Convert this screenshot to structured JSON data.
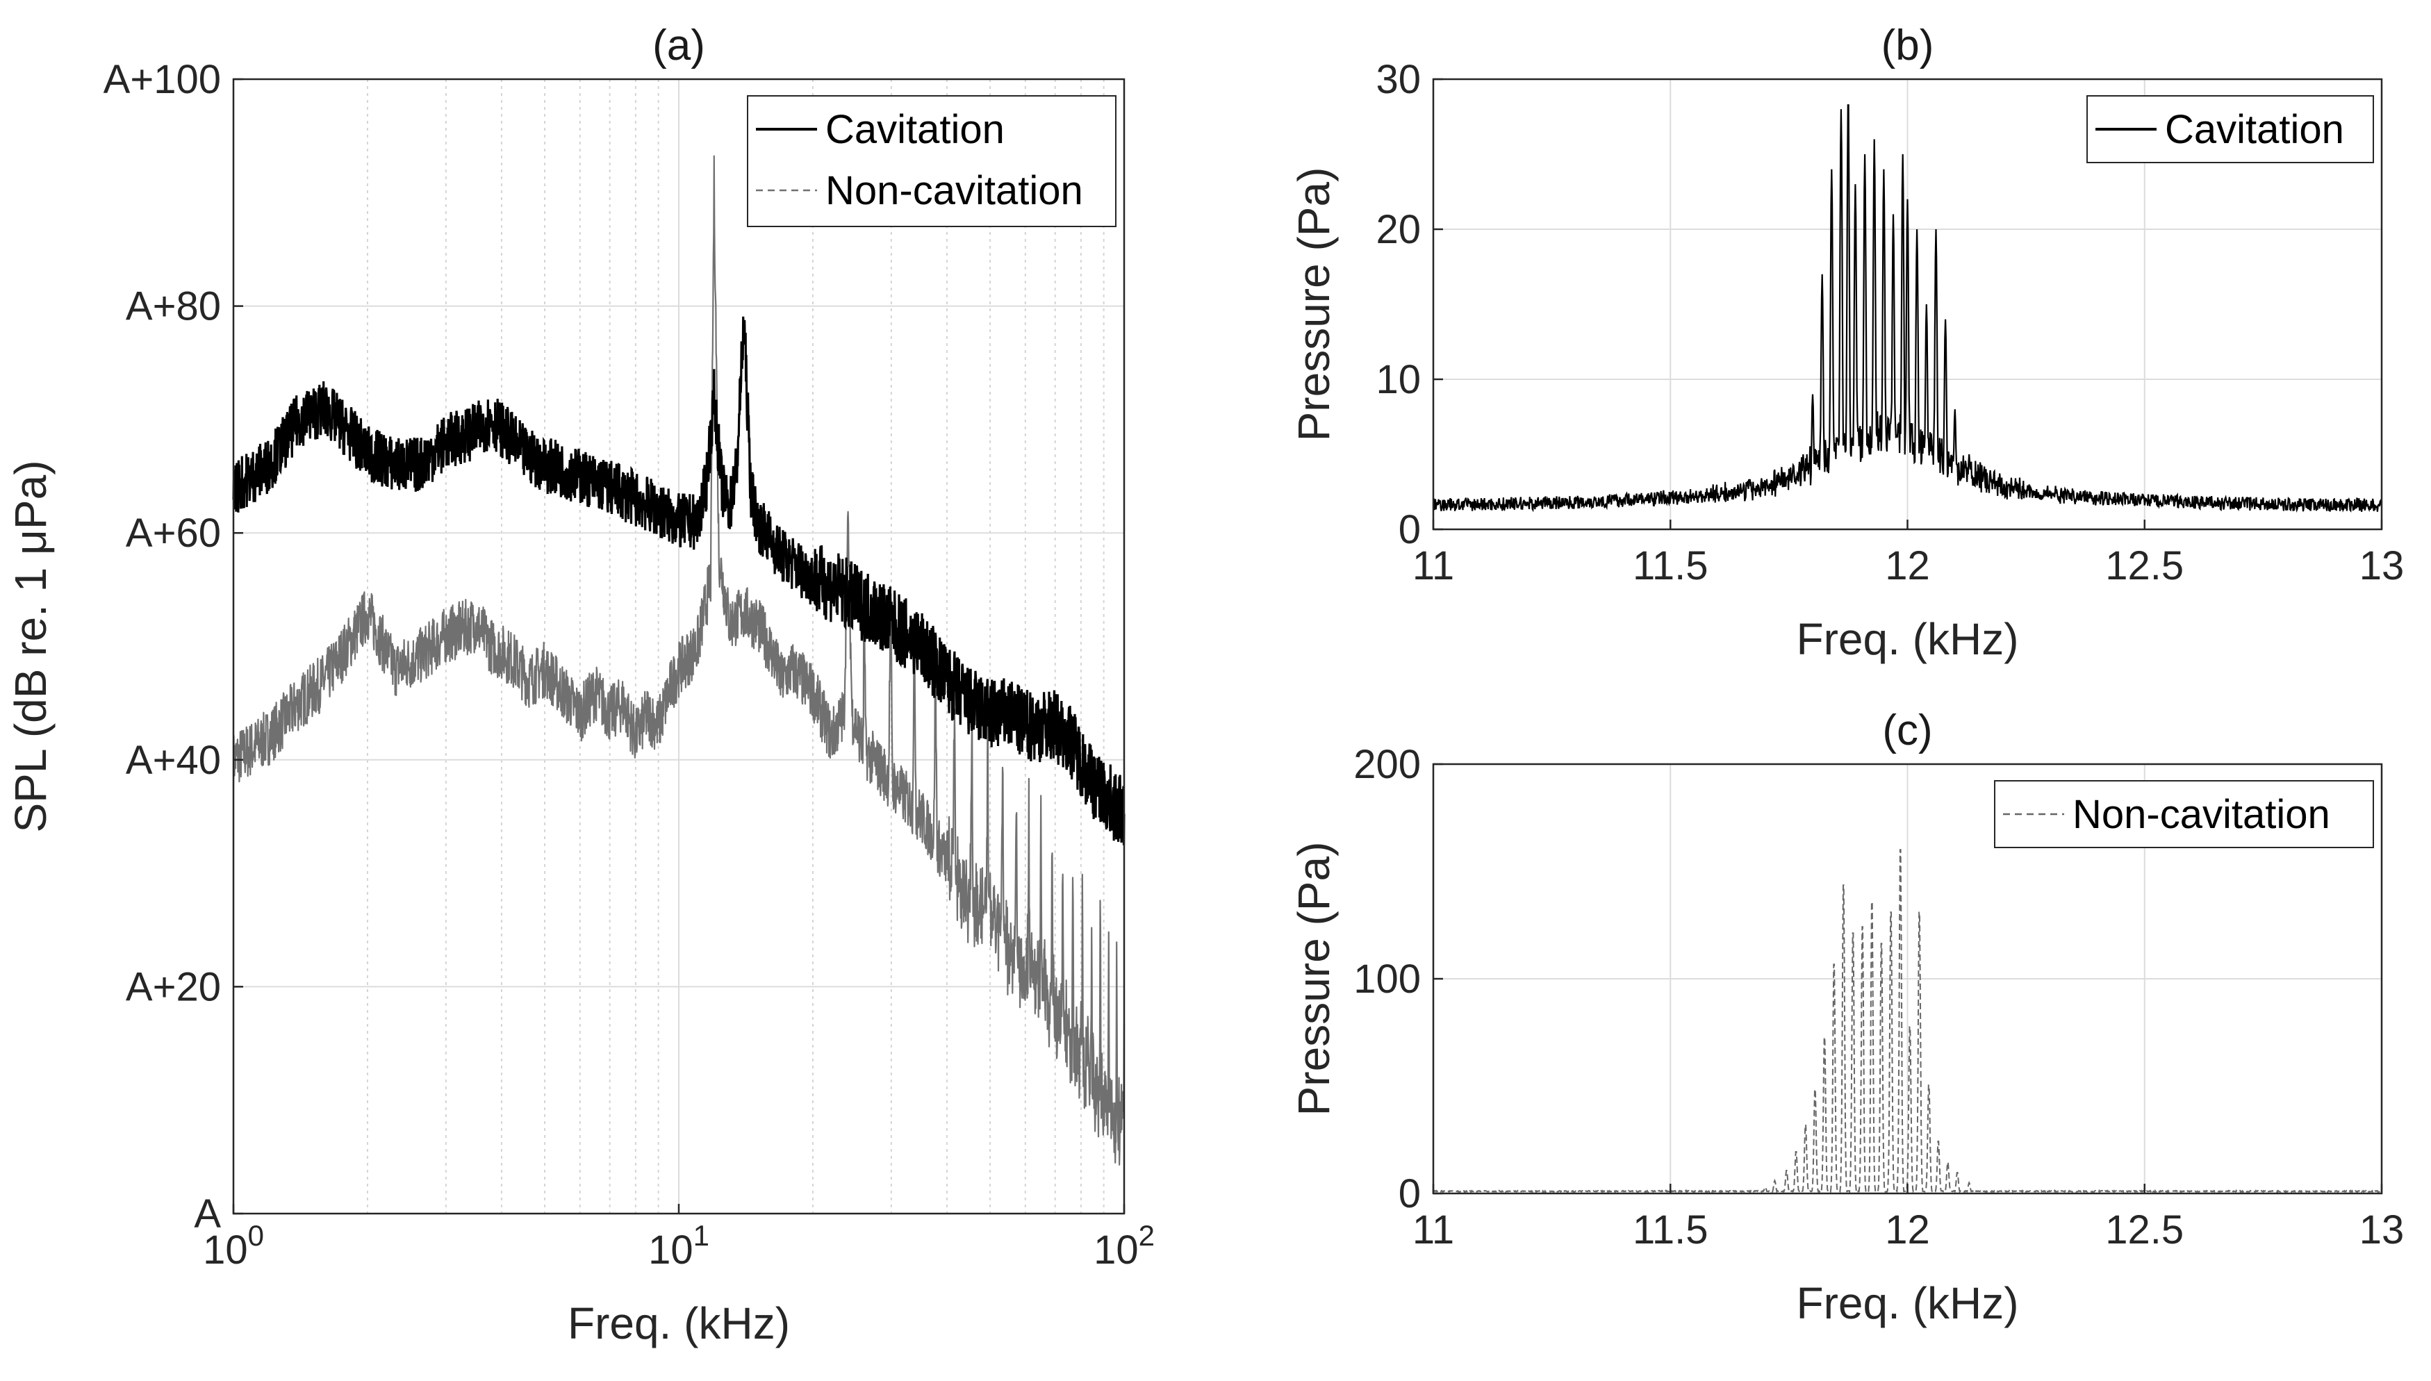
{
  "chart_data": [
    {
      "id": "a",
      "type": "line",
      "title": "(a)",
      "xlabel": "Freq. (kHz)",
      "ylabel": "SPL (dB re. 1 μPa)",
      "xscale": "log",
      "xlim": [
        1,
        100
      ],
      "ylim": [
        0,
        100
      ],
      "grid": true,
      "legend_position": "top-right",
      "xticks": [
        {
          "value": 1,
          "base": "10",
          "exp": "0"
        },
        {
          "value": 10,
          "base": "10",
          "exp": "1"
        },
        {
          "value": 100,
          "base": "10",
          "exp": "2"
        }
      ],
      "yticks": [
        {
          "value": 0,
          "label": "A"
        },
        {
          "value": 20,
          "label": "A+20"
        },
        {
          "value": 40,
          "label": "A+40"
        },
        {
          "value": 60,
          "label": "A+60"
        },
        {
          "value": 80,
          "label": "A+80"
        },
        {
          "value": 100,
          "label": "A+100"
        }
      ],
      "series": [
        {
          "name": "Cavitation",
          "color": "#000000",
          "style": "solid",
          "x": [
            1.0,
            1.2,
            1.4,
            1.6,
            1.8,
            2.0,
            2.3,
            2.6,
            3.0,
            3.5,
            3.8,
            4.5,
            5.0,
            6.0,
            7.0,
            8.0,
            9.0,
            10.0,
            11.0,
            11.5,
            12.0,
            12.5,
            13.0,
            13.5,
            14.0,
            14.5,
            15.0,
            17.0,
            20.0,
            23.0,
            25.0,
            28.0,
            30.0,
            35.0,
            40.0,
            45.0,
            50.0,
            55.0,
            60.0,
            65.0,
            70.0,
            75.0,
            80.0,
            85.0,
            90.0,
            95.0,
            100.0
          ],
          "values": [
            64,
            66,
            70,
            71,
            69,
            67,
            66,
            66,
            68,
            69,
            70,
            67,
            66,
            65,
            64,
            63,
            62,
            61,
            61,
            64,
            72,
            64,
            62,
            66,
            79,
            64,
            61,
            58,
            56,
            55,
            54,
            53,
            52,
            50,
            47,
            45,
            44,
            44,
            43,
            43,
            43,
            42,
            40,
            38,
            37,
            36,
            35
          ],
          "band": 2.5
        },
        {
          "name": "Non-cavitation",
          "color": "#707070",
          "style": "dashed",
          "x": [
            1.0,
            1.2,
            1.4,
            1.6,
            1.8,
            2.0,
            2.3,
            2.6,
            3.0,
            3.5,
            3.8,
            4.2,
            4.6,
            5.0,
            5.5,
            6.0,
            6.5,
            7.0,
            7.5,
            8.0,
            8.5,
            9.0,
            9.5,
            10.0,
            11.0,
            11.8,
            12.0,
            12.3,
            13.0,
            14.0,
            15.0,
            16.0,
            17.0,
            18.0,
            20.0,
            22.0,
            23.5,
            24.0,
            24.5,
            26.0,
            30.0,
            35.0,
            40.0,
            45.0,
            50.0,
            55.0,
            60.0,
            65.0,
            70.0,
            75.0,
            80.0,
            85.0,
            90.0,
            95.0,
            100.0
          ],
          "values": [
            40,
            42,
            45,
            47,
            50,
            53,
            48,
            49,
            51,
            52,
            50,
            49,
            47,
            48,
            46,
            44,
            46,
            44,
            45,
            42,
            44,
            43,
            46,
            48,
            50,
            56,
            91,
            58,
            52,
            53,
            52,
            50,
            47,
            48,
            46,
            42,
            44,
            61,
            44,
            41,
            38,
            35,
            31,
            28,
            26,
            24,
            22,
            20,
            18,
            16,
            14,
            12,
            10,
            9,
            8
          ],
          "band": 2.5,
          "comb_start_khz": 26,
          "comb_step_khz": 3.9,
          "comb_height_db": 16
        }
      ]
    },
    {
      "id": "b",
      "type": "line",
      "title": "(b)",
      "xlabel": "Freq. (kHz)",
      "ylabel": "Pressure (Pa)",
      "xlim": [
        11,
        13
      ],
      "ylim": [
        0,
        30
      ],
      "grid": true,
      "legend_position": "top-right",
      "xticks": [
        {
          "value": 11,
          "label": "11"
        },
        {
          "value": 11.5,
          "label": "11.5"
        },
        {
          "value": 12,
          "label": "12"
        },
        {
          "value": 12.5,
          "label": "12.5"
        },
        {
          "value": 13,
          "label": "13"
        }
      ],
      "yticks": [
        {
          "value": 0,
          "label": "0"
        },
        {
          "value": 10,
          "label": "10"
        },
        {
          "value": 20,
          "label": "20"
        },
        {
          "value": 30,
          "label": "30"
        }
      ],
      "series": [
        {
          "name": "Cavitation",
          "color": "#000000",
          "style": "solid",
          "baseline": 1.6,
          "peaks_x": [
            11.78,
            11.8,
            11.82,
            11.84,
            11.86,
            11.875,
            11.89,
            11.91,
            11.93,
            11.95,
            11.97,
            11.99,
            12.0,
            12.02,
            12.04,
            12.06,
            12.08,
            12.1,
            12.13
          ],
          "peaks_y": [
            5,
            9,
            17,
            24,
            28,
            29,
            23,
            25,
            26,
            24,
            21,
            25,
            22,
            20,
            15,
            20,
            14,
            8,
            5
          ]
        }
      ]
    },
    {
      "id": "c",
      "type": "line",
      "title": "(c)",
      "xlabel": "Freq. (kHz)",
      "ylabel": "Pressure (Pa)",
      "xlim": [
        11,
        13
      ],
      "ylim": [
        0,
        200
      ],
      "grid": true,
      "legend_position": "top-right",
      "xticks": [
        {
          "value": 11,
          "label": "11"
        },
        {
          "value": 11.5,
          "label": "11.5"
        },
        {
          "value": 12,
          "label": "12"
        },
        {
          "value": 12.5,
          "label": "12.5"
        },
        {
          "value": 13,
          "label": "13"
        }
      ],
      "yticks": [
        {
          "value": 0,
          "label": "0"
        },
        {
          "value": 100,
          "label": "100"
        },
        {
          "value": 200,
          "label": "200"
        }
      ],
      "series": [
        {
          "name": "Non-cavitation",
          "color": "#666666",
          "style": "dashed",
          "baseline": 1,
          "peaks_x": [
            11.7,
            11.72,
            11.745,
            11.765,
            11.785,
            11.805,
            11.825,
            11.845,
            11.865,
            11.885,
            11.905,
            11.925,
            11.945,
            11.965,
            11.985,
            12.005,
            12.025,
            12.045,
            12.065,
            12.085,
            12.105,
            12.13
          ],
          "peaks_y": [
            3,
            6,
            11,
            20,
            33,
            50,
            75,
            110,
            148,
            125,
            128,
            140,
            120,
            135,
            165,
            80,
            135,
            52,
            25,
            15,
            10,
            5
          ]
        }
      ]
    }
  ]
}
